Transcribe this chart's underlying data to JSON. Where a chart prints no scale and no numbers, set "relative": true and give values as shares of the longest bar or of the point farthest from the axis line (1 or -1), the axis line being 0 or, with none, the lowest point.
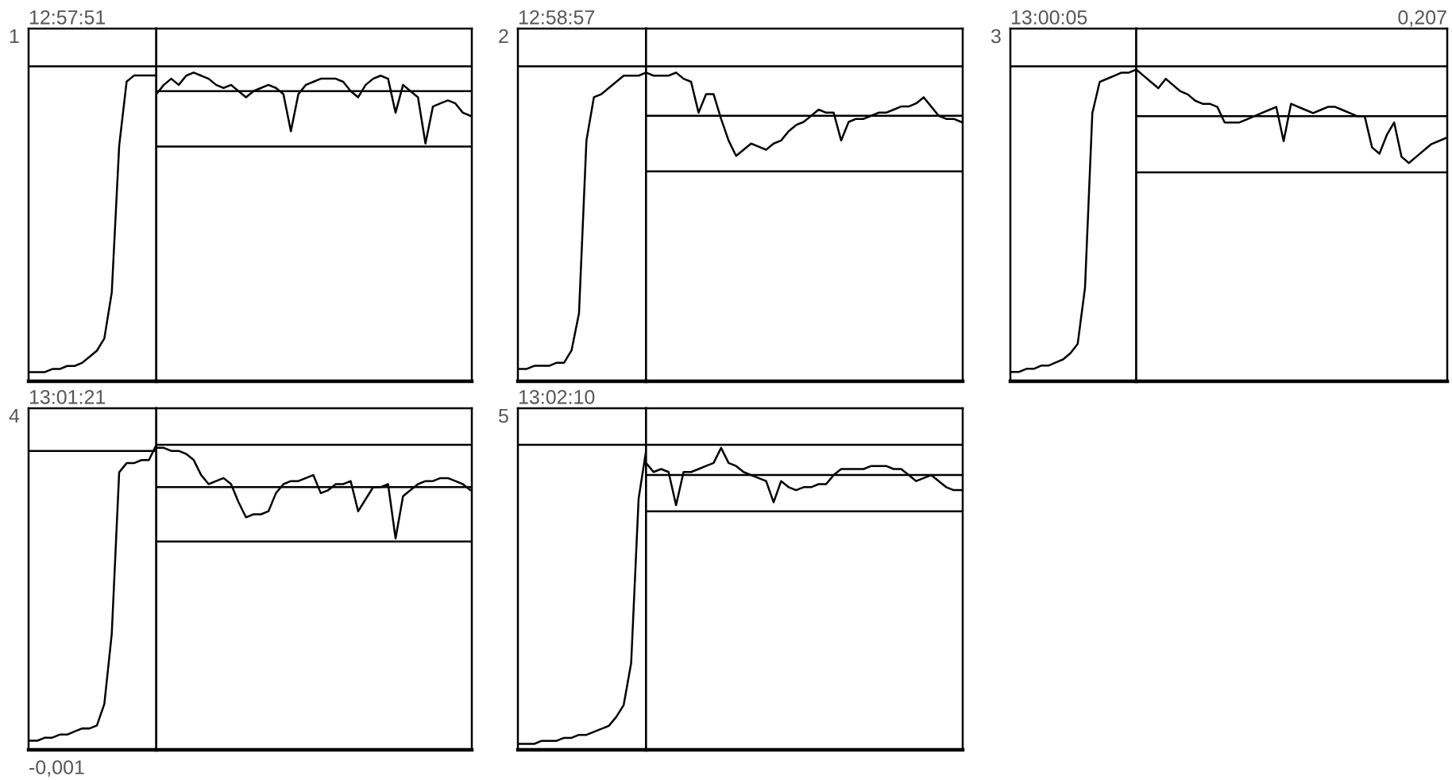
{
  "chart_data": [
    {
      "type": "line",
      "relative": true,
      "title": "12:57:51",
      "ylabel": "1",
      "categories": [
        null,
        null,
        null,
        null,
        null,
        null,
        null,
        null,
        null,
        null,
        null,
        null,
        null,
        null,
        null,
        null,
        null,
        null
      ],
      "ref_lines": [
        {
          "axis": "y",
          "value": 1.03,
          "color": "#000000"
        }
      ],
      "series": [
        {
          "color": "#000000",
          "values": [
            0.03,
            0.03,
            0.03,
            0.04,
            0.04,
            0.05,
            0.05,
            0.06,
            0.08,
            0.1,
            0.14,
            0.29,
            0.77,
            0.98,
            1,
            1,
            1,
            1
          ]
        }
      ]
    },
    {
      "type": "line",
      "relative": true,
      "categories": [
        null,
        null,
        null,
        null,
        null,
        null,
        null,
        null,
        null,
        null,
        null,
        null,
        null,
        null,
        null,
        null,
        null,
        null,
        null,
        null,
        null,
        null,
        null,
        null,
        null,
        null,
        null,
        null,
        null,
        null,
        null,
        null,
        null,
        null,
        null,
        null,
        null,
        null,
        null,
        null,
        null,
        null,
        null
      ],
      "ref_lines": [
        {
          "axis": "y",
          "value": 1.02,
          "color": "#000000"
        },
        {
          "axis": "y",
          "value": 0.94,
          "color": "#000000"
        },
        {
          "axis": "y",
          "value": 0.76,
          "color": "#000000"
        }
      ],
      "series": [
        {
          "color": "#000000",
          "values": [
            0.93,
            0.96,
            0.98,
            0.96,
            0.99,
            1,
            0.99,
            0.98,
            0.96,
            0.95,
            0.96,
            0.94,
            0.92,
            0.94,
            0.95,
            0.96,
            0.95,
            0.93,
            0.81,
            0.93,
            0.96,
            0.97,
            0.98,
            0.98,
            0.98,
            0.97,
            0.94,
            0.92,
            0.96,
            0.98,
            0.99,
            0.98,
            0.87,
            0.96,
            0.94,
            0.92,
            0.77,
            0.89,
            0.9,
            0.91,
            0.9,
            0.87,
            0.86
          ]
        }
      ]
    },
    {
      "type": "line",
      "relative": true,
      "title": "12:58:57",
      "ylabel": "2",
      "categories": [
        null,
        null,
        null,
        null,
        null,
        null,
        null,
        null,
        null,
        null,
        null,
        null,
        null,
        null,
        null,
        null,
        null,
        null
      ],
      "ref_lines": [
        {
          "axis": "y",
          "value": 1.02,
          "color": "#000000"
        }
      ],
      "series": [
        {
          "color": "#000000",
          "values": [
            0.04,
            0.04,
            0.05,
            0.05,
            0.05,
            0.06,
            0.06,
            0.1,
            0.22,
            0.78,
            0.92,
            0.93,
            0.95,
            0.97,
            0.99,
            0.99,
            0.99,
            1.0
          ]
        }
      ]
    },
    {
      "type": "line",
      "relative": true,
      "categories": [
        null,
        null,
        null,
        null,
        null,
        null,
        null,
        null,
        null,
        null,
        null,
        null,
        null,
        null,
        null,
        null,
        null,
        null,
        null,
        null,
        null,
        null,
        null,
        null,
        null,
        null,
        null,
        null,
        null,
        null,
        null,
        null,
        null,
        null,
        null,
        null,
        null,
        null,
        null,
        null,
        null,
        null,
        null
      ],
      "ref_lines": [
        {
          "axis": "y",
          "value": 1.02,
          "color": "#000000"
        },
        {
          "axis": "y",
          "value": 0.86,
          "color": "#000000"
        },
        {
          "axis": "y",
          "value": 0.68,
          "color": "#000000"
        }
      ],
      "series": [
        {
          "color": "#000000",
          "values": [
            1.0,
            0.99,
            0.99,
            0.99,
            1.0,
            0.98,
            0.97,
            0.87,
            0.93,
            0.93,
            0.85,
            0.78,
            0.73,
            0.75,
            0.77,
            0.76,
            0.75,
            0.77,
            0.78,
            0.81,
            0.83,
            0.84,
            0.86,
            0.88,
            0.87,
            0.87,
            0.78,
            0.84,
            0.85,
            0.85,
            0.86,
            0.87,
            0.87,
            0.88,
            0.89,
            0.89,
            0.9,
            0.92,
            0.89,
            0.86,
            0.85,
            0.85,
            0.84
          ]
        }
      ]
    },
    {
      "type": "line",
      "relative": true,
      "title": "13:00:05",
      "ylabel": "3",
      "categories": [
        null,
        null,
        null,
        null,
        null,
        null,
        null,
        null,
        null,
        null,
        null,
        null,
        null,
        null,
        null,
        null,
        null,
        null
      ],
      "ref_lines": [
        {
          "axis": "y",
          "value": 1.01,
          "color": "#000000"
        }
      ],
      "series": [
        {
          "color": "#000000",
          "values": [
            0.03,
            0.03,
            0.04,
            0.04,
            0.05,
            0.05,
            0.06,
            0.07,
            0.09,
            0.12,
            0.3,
            0.86,
            0.96,
            0.97,
            0.98,
            0.99,
            0.99,
            1.0
          ]
        }
      ]
    },
    {
      "type": "line",
      "relative": true,
      "subtitle": "0,207",
      "categories": [
        null,
        null,
        null,
        null,
        null,
        null,
        null,
        null,
        null,
        null,
        null,
        null,
        null,
        null,
        null,
        null,
        null,
        null,
        null,
        null,
        null,
        null,
        null,
        null,
        null,
        null,
        null,
        null,
        null,
        null,
        null,
        null,
        null,
        null,
        null,
        null,
        null,
        null,
        null,
        null,
        null,
        null,
        null
      ],
      "ref_lines": [
        {
          "axis": "y",
          "value": 1.01,
          "color": "#000000"
        },
        {
          "axis": "y",
          "value": 0.85,
          "color": "#000000"
        },
        {
          "axis": "y",
          "value": 0.67,
          "color": "#000000"
        }
      ],
      "series": [
        {
          "color": "#000000",
          "values": [
            1.0,
            0.98,
            0.96,
            0.94,
            0.97,
            0.95,
            0.93,
            0.92,
            0.9,
            0.89,
            0.89,
            0.88,
            0.83,
            0.83,
            0.83,
            0.84,
            0.85,
            0.86,
            0.87,
            0.88,
            0.77,
            0.89,
            0.88,
            0.87,
            0.86,
            0.87,
            0.88,
            0.88,
            0.87,
            0.86,
            0.85,
            0.85,
            0.75,
            0.73,
            0.79,
            0.83,
            0.72,
            0.7,
            0.72,
            0.74,
            0.76,
            0.77,
            0.78
          ]
        }
      ]
    },
    {
      "type": "line",
      "relative": true,
      "title": "13:01:21",
      "ylabel": "4",
      "xlabel": "-0,001",
      "categories": [
        null,
        null,
        null,
        null,
        null,
        null,
        null,
        null,
        null,
        null,
        null,
        null,
        null,
        null,
        null,
        null,
        null,
        null
      ],
      "ref_lines": [
        {
          "axis": "y",
          "value": 0.98,
          "color": "#000000"
        }
      ],
      "series": [
        {
          "color": "#000000",
          "values": [
            0.03,
            0.03,
            0.04,
            0.04,
            0.05,
            0.05,
            0.06,
            0.07,
            0.07,
            0.08,
            0.15,
            0.38,
            0.91,
            0.94,
            0.94,
            0.95,
            0.95,
            1.0
          ]
        }
      ]
    },
    {
      "type": "line",
      "relative": true,
      "categories": [
        null,
        null,
        null,
        null,
        null,
        null,
        null,
        null,
        null,
        null,
        null,
        null,
        null,
        null,
        null,
        null,
        null,
        null,
        null,
        null,
        null,
        null,
        null,
        null,
        null,
        null,
        null,
        null,
        null,
        null,
        null,
        null,
        null,
        null,
        null,
        null,
        null,
        null,
        null,
        null,
        null,
        null,
        null
      ],
      "ref_lines": [
        {
          "axis": "y",
          "value": 1.01,
          "color": "#000000"
        },
        {
          "axis": "y",
          "value": 0.87,
          "color": "#000000"
        },
        {
          "axis": "y",
          "value": 0.69,
          "color": "#000000"
        }
      ],
      "series": [
        {
          "color": "#000000",
          "values": [
            1.0,
            1.0,
            0.99,
            0.99,
            0.98,
            0.96,
            0.91,
            0.88,
            0.89,
            0.9,
            0.88,
            0.82,
            0.77,
            0.78,
            0.78,
            0.79,
            0.85,
            0.88,
            0.89,
            0.89,
            0.9,
            0.91,
            0.85,
            0.86,
            0.88,
            0.88,
            0.89,
            0.79,
            0.83,
            0.87,
            0.87,
            0.88,
            0.7,
            0.84,
            0.86,
            0.88,
            0.89,
            0.89,
            0.9,
            0.9,
            0.89,
            0.88,
            0.86
          ]
        }
      ]
    },
    {
      "type": "line",
      "relative": true,
      "title": "13:02:10",
      "ylabel": "5",
      "categories": [
        null,
        null,
        null,
        null,
        null,
        null,
        null,
        null,
        null,
        null,
        null,
        null,
        null,
        null,
        null,
        null,
        null,
        null
      ],
      "ref_lines": [
        {
          "axis": "y",
          "value": 1.02,
          "color": "#000000"
        }
      ],
      "series": [
        {
          "color": "#000000",
          "values": [
            0.02,
            0.02,
            0.02,
            0.03,
            0.03,
            0.03,
            0.04,
            0.04,
            0.05,
            0.05,
            0.06,
            0.07,
            0.08,
            0.11,
            0.15,
            0.29,
            0.84,
            1
          ]
        }
      ]
    },
    {
      "type": "line",
      "relative": true,
      "categories": [
        null,
        null,
        null,
        null,
        null,
        null,
        null,
        null,
        null,
        null,
        null,
        null,
        null,
        null,
        null,
        null,
        null,
        null,
        null,
        null,
        null,
        null,
        null,
        null,
        null,
        null,
        null,
        null,
        null,
        null,
        null,
        null,
        null,
        null,
        null,
        null,
        null,
        null,
        null,
        null,
        null,
        null,
        null
      ],
      "ref_lines": [
        {
          "axis": "y",
          "value": 1.01,
          "color": "#000000"
        },
        {
          "axis": "y",
          "value": 0.91,
          "color": "#000000"
        },
        {
          "axis": "y",
          "value": 0.79,
          "color": "#000000"
        }
      ],
      "series": [
        {
          "color": "#000000",
          "values": [
            0.95,
            0.92,
            0.93,
            0.92,
            0.81,
            0.92,
            0.92,
            0.93,
            0.94,
            0.95,
            1.0,
            0.95,
            0.94,
            0.92,
            0.91,
            0.9,
            0.89,
            0.82,
            0.89,
            0.87,
            0.86,
            0.87,
            0.87,
            0.88,
            0.88,
            0.91,
            0.93,
            0.93,
            0.93,
            0.93,
            0.94,
            0.94,
            0.94,
            0.93,
            0.93,
            0.91,
            0.89,
            0.9,
            0.91,
            0.89,
            0.87,
            0.86,
            0.86
          ]
        }
      ]
    }
  ]
}
